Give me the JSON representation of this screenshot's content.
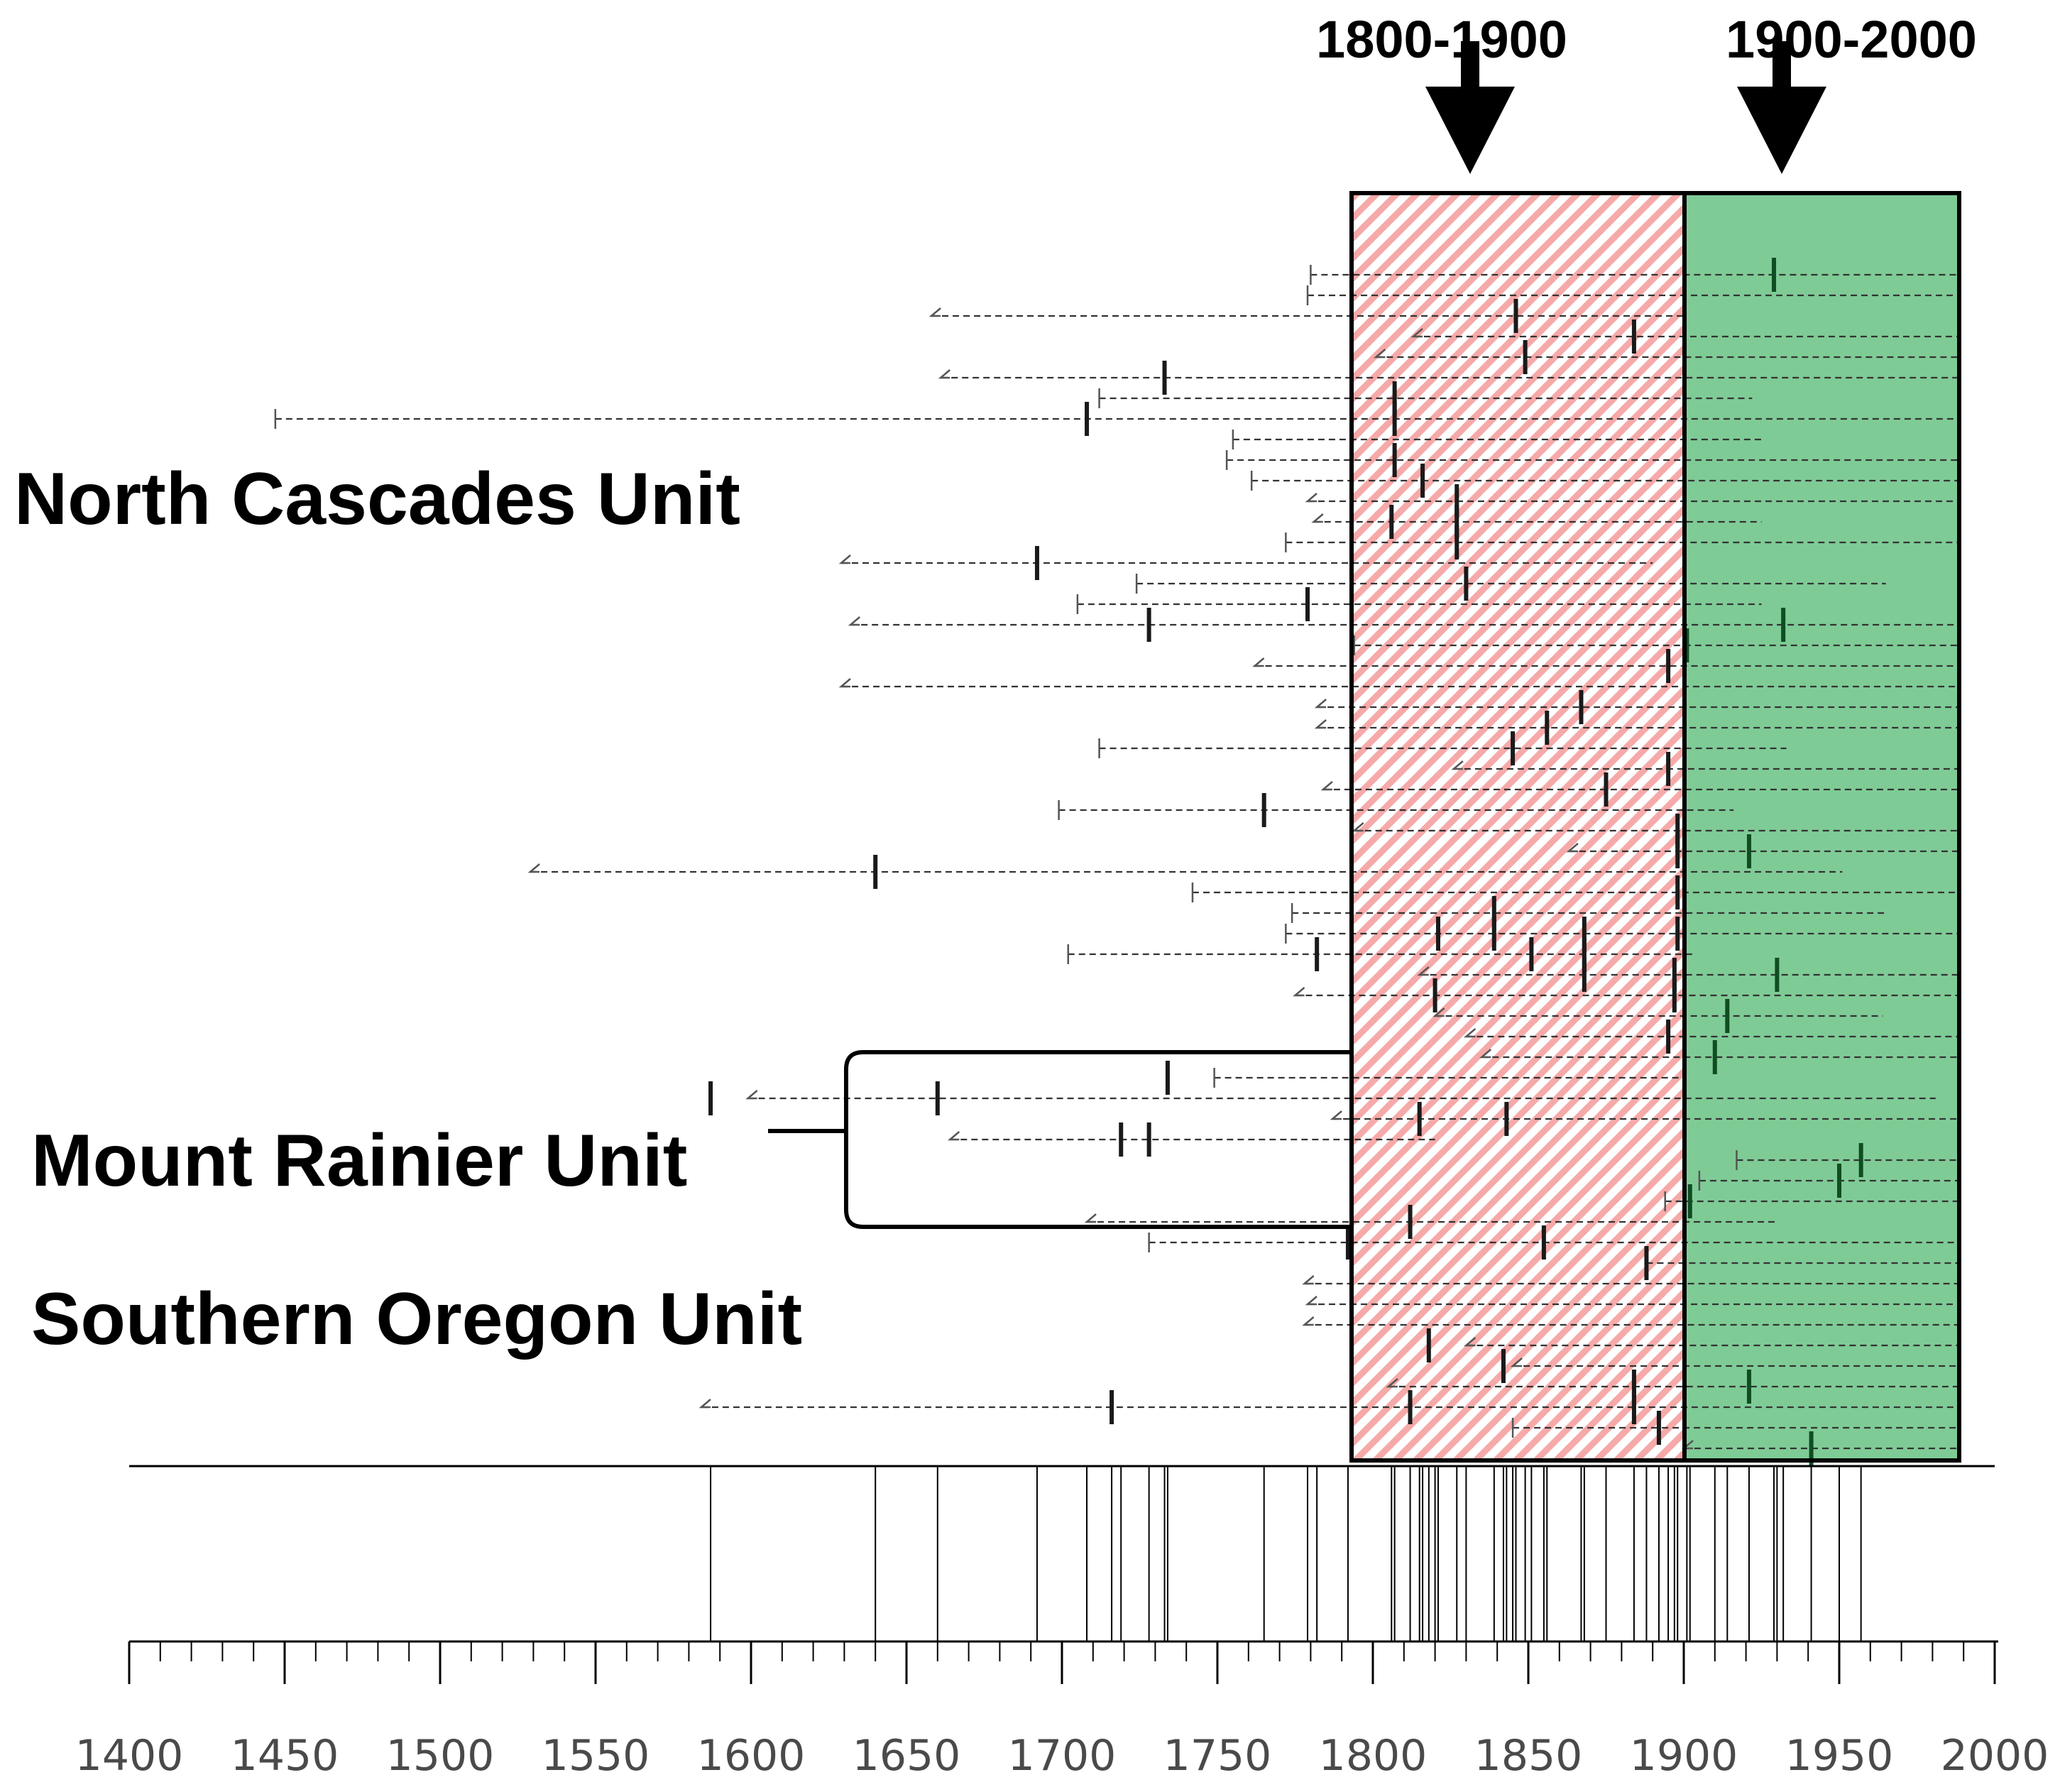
{
  "chart_data": {
    "type": "timeline",
    "x_axis": {
      "range": [
        1400,
        2000
      ],
      "major_tick_labels": [
        "1400",
        "1450",
        "1500",
        "1550",
        "1600",
        "1650",
        "1700",
        "1750",
        "1800",
        "1850",
        "1900",
        "1950",
        "2000"
      ],
      "minor_tick_interval": 10
    },
    "periods": [
      {
        "label": "1800-1900",
        "start": 1800,
        "end": 1900,
        "fill": "pink diagonal hatch",
        "color": "#f6a9a9"
      },
      {
        "label": "1900-2000",
        "start": 1900,
        "end": 1988,
        "fill": "solid",
        "color": "#7fcb96"
      }
    ],
    "unit_labels": [
      "North Cascades Unit",
      "Mount Rainier Unit",
      "Southern Oregon Unit"
    ],
    "series": [
      {
        "start": 1780,
        "end": 1988,
        "events": [
          1929
        ],
        "start_type": "pith"
      },
      {
        "start": 1779,
        "end": 1988,
        "events": [],
        "start_type": "pith"
      },
      {
        "start": 1658,
        "end": 1900,
        "events": [
          1846
        ],
        "start_type": "inner"
      },
      {
        "start": 1813,
        "end": 1988,
        "events": [
          1884
        ],
        "start_type": "inner"
      },
      {
        "start": 1801,
        "end": 1988,
        "events": [
          1849
        ],
        "start_type": "inner"
      },
      {
        "start": 1661,
        "end": 1988,
        "events": [
          1733
        ],
        "start_type": "inner"
      },
      {
        "start": 1712,
        "end": 1922,
        "events": [
          1807
        ],
        "start_type": "pith"
      },
      {
        "start": 1447,
        "end": 1988,
        "events": [
          1708,
          1807
        ],
        "start_type": "pith"
      },
      {
        "start": 1755,
        "end": 1925,
        "events": [],
        "start_type": "pith"
      },
      {
        "start": 1753,
        "end": 1988,
        "events": [
          1807
        ],
        "start_type": "pith"
      },
      {
        "start": 1761,
        "end": 1988,
        "events": [
          1816
        ],
        "start_type": "pith"
      },
      {
        "start": 1779,
        "end": 1988,
        "events": [
          1827
        ],
        "start_type": "inner"
      },
      {
        "start": 1781,
        "end": 1925,
        "events": [
          1806,
          1827
        ],
        "start_type": "inner"
      },
      {
        "start": 1772,
        "end": 1988,
        "events": [
          1827
        ],
        "start_type": "pith"
      },
      {
        "start": 1629,
        "end": 1890,
        "events": [
          1692
        ],
        "start_type": "inner"
      },
      {
        "start": 1724,
        "end": 1965,
        "events": [
          1830
        ],
        "start_type": "pith"
      },
      {
        "start": 1705,
        "end": 1925,
        "events": [
          1779
        ],
        "start_type": "pith"
      },
      {
        "start": 1632,
        "end": 1988,
        "events": [
          1728,
          1932
        ],
        "start_type": "inner"
      },
      {
        "start": 1794,
        "end": 1988,
        "events": [
          1901
        ],
        "start_type": "pith"
      },
      {
        "start": 1762,
        "end": 1988,
        "events": [
          1895
        ],
        "start_type": "inner"
      },
      {
        "start": 1629,
        "end": 1988,
        "events": [],
        "start_type": "inner"
      },
      {
        "start": 1782,
        "end": 1988,
        "events": [
          1867
        ],
        "start_type": "inner"
      },
      {
        "start": 1782,
        "end": 1988,
        "events": [
          1856
        ],
        "start_type": "inner"
      },
      {
        "start": 1712,
        "end": 1933,
        "events": [
          1845
        ],
        "start_type": "pith"
      },
      {
        "start": 1826,
        "end": 1988,
        "events": [
          1895
        ],
        "start_type": "inner"
      },
      {
        "start": 1784,
        "end": 1988,
        "events": [
          1875
        ],
        "start_type": "inner"
      },
      {
        "start": 1699,
        "end": 1916,
        "events": [
          1765
        ],
        "start_type": "pith"
      },
      {
        "start": 1794,
        "end": 1988,
        "events": [
          1898
        ],
        "start_type": "inner"
      },
      {
        "start": 1863,
        "end": 1988,
        "events": [
          1898,
          1921
        ],
        "start_type": "inner"
      },
      {
        "start": 1529,
        "end": 1951,
        "events": [
          1640
        ],
        "start_type": "inner"
      },
      {
        "start": 1742,
        "end": 1988,
        "events": [
          1898
        ],
        "start_type": "pith"
      },
      {
        "start": 1774,
        "end": 1965,
        "events": [
          1839
        ],
        "start_type": "pith"
      },
      {
        "start": 1772,
        "end": 1988,
        "events": [
          1821,
          1839,
          1868,
          1898
        ],
        "start_type": "pith"
      },
      {
        "start": 1702,
        "end": 1904,
        "events": [
          1782,
          1851,
          1868
        ],
        "start_type": "pith"
      },
      {
        "start": 1815,
        "end": 1988,
        "events": [
          1868,
          1897,
          1930
        ],
        "start_type": "inner"
      },
      {
        "start": 1775,
        "end": 1988,
        "events": [
          1820,
          1897
        ],
        "start_type": "inner"
      },
      {
        "start": 1820,
        "end": 1964,
        "events": [
          1914
        ],
        "start_type": "inner"
      },
      {
        "start": 1830,
        "end": 1988,
        "events": [
          1895
        ],
        "start_type": "inner"
      },
      {
        "start": 1835,
        "end": 1988,
        "events": [
          1910
        ],
        "start_type": "inner"
      },
      {
        "start": 1749,
        "end": 1899,
        "events": [
          1734
        ],
        "start_type": "pith"
      },
      {
        "start": 1599,
        "end": 1981,
        "events": [
          1587,
          1660
        ],
        "start_type": "inner"
      },
      {
        "start": 1787,
        "end": 1988,
        "events": [
          1815,
          1843
        ],
        "start_type": "inner"
      },
      {
        "start": 1664,
        "end": 1820,
        "events": [
          1719,
          1728
        ],
        "start_type": "inner"
      },
      {
        "start": 1917,
        "end": 1988,
        "events": [
          1957
        ],
        "start_type": "pith"
      },
      {
        "start": 1905,
        "end": 1988,
        "events": [
          1950
        ],
        "start_type": "pith"
      },
      {
        "start": 1894,
        "end": 1988,
        "events": [
          1902
        ],
        "start_type": "pith"
      },
      {
        "start": 1708,
        "end": 1930,
        "events": [
          1812
        ],
        "start_type": "inner"
      },
      {
        "start": 1728,
        "end": 1988,
        "events": [
          1792,
          1855
        ],
        "start_type": "pith"
      },
      {
        "start": 1888,
        "end": 1988,
        "events": [
          1888
        ],
        "start_type": "pith"
      },
      {
        "start": 1778,
        "end": 1988,
        "events": [],
        "start_type": "inner"
      },
      {
        "start": 1779,
        "end": 1988,
        "events": [],
        "start_type": "inner"
      },
      {
        "start": 1778,
        "end": 1988,
        "events": [],
        "start_type": "inner"
      },
      {
        "start": 1830,
        "end": 1988,
        "events": [
          1818
        ],
        "start_type": "inner"
      },
      {
        "start": 1845,
        "end": 1988,
        "events": [
          1842
        ],
        "start_type": "inner"
      },
      {
        "start": 1805,
        "end": 1988,
        "events": [
          1884,
          1921
        ],
        "start_type": "inner"
      },
      {
        "start": 1584,
        "end": 1988,
        "events": [
          1716,
          1812,
          1884
        ],
        "start_type": "inner"
      },
      {
        "start": 1845,
        "end": 1988,
        "events": [
          1892
        ],
        "start_type": "pith"
      },
      {
        "start": 1900,
        "end": 1988,
        "events": [
          1941
        ],
        "start_type": "inner"
      }
    ],
    "composite_events": [
      1587,
      1640,
      1660,
      1692,
      1708,
      1716,
      1719,
      1728,
      1733,
      1734,
      1765,
      1779,
      1782,
      1792,
      1806,
      1807,
      1812,
      1815,
      1816,
      1818,
      1820,
      1821,
      1827,
      1830,
      1839,
      1842,
      1843,
      1845,
      1846,
      1849,
      1851,
      1855,
      1856,
      1867,
      1868,
      1875,
      1884,
      1888,
      1892,
      1895,
      1897,
      1898,
      1901,
      1902,
      1910,
      1914,
      1921,
      1929,
      1930,
      1932,
      1941,
      1950,
      1957
    ]
  }
}
